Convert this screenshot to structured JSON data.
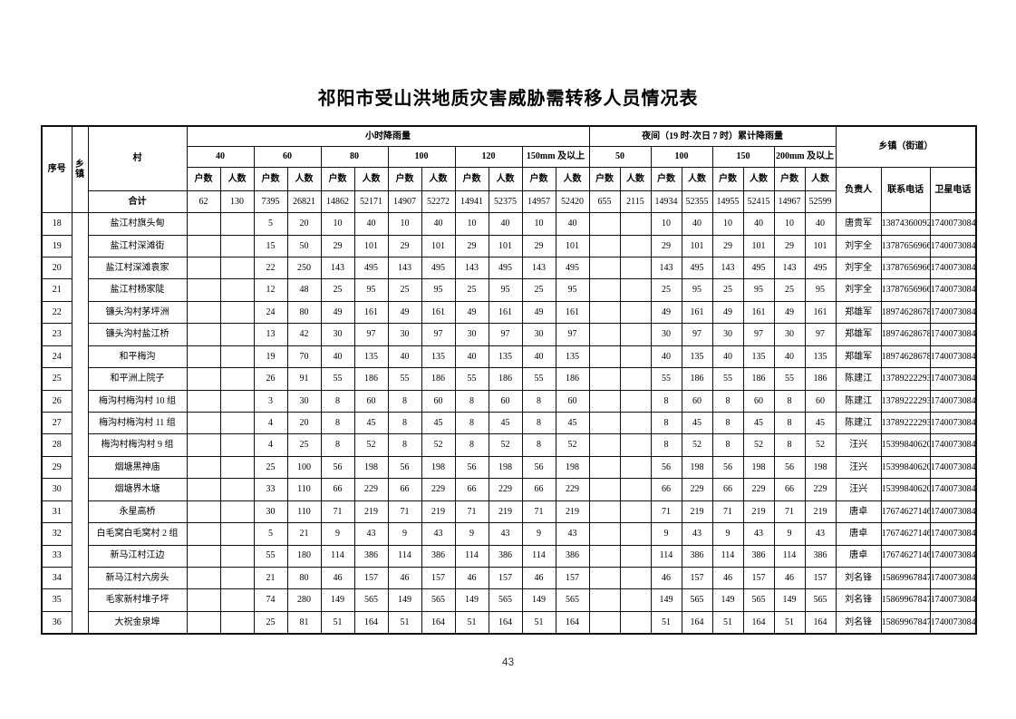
{
  "page": {
    "title": "祁阳市受山洪地质灾害威胁需转移人员情况表",
    "page_number": "43"
  },
  "table": {
    "headers": {
      "seq": "序号",
      "township": "乡镇",
      "village": "村",
      "hourly_group": "小时降雨量",
      "night_group": "夜间（19 时-次日 7 时）累计降雨量",
      "township_street_group": "乡镇（街道）",
      "hourly_levels": [
        "40",
        "60",
        "80",
        "100",
        "120",
        "150mm 及以上"
      ],
      "night_levels": [
        "50",
        "100",
        "150",
        "200mm 及以上"
      ],
      "households": "户数",
      "people": "人数",
      "person": "负责人",
      "phone": "联系电话",
      "sat_phone": "卫星电话",
      "total_label": "合计"
    },
    "total_row": [
      "62",
      "130",
      "7395",
      "26821",
      "14862",
      "52171",
      "14907",
      "52272",
      "14941",
      "52375",
      "14957",
      "52420",
      "655",
      "2115",
      "14934",
      "52355",
      "14955",
      "52415",
      "14967",
      "52599"
    ],
    "rows": [
      {
        "seq": "18",
        "village": "盐江村旗头甸",
        "values": [
          "",
          "",
          "5",
          "20",
          "10",
          "40",
          "10",
          "40",
          "10",
          "40",
          "10",
          "40",
          "",
          "",
          "10",
          "40",
          "10",
          "40",
          "10",
          "40"
        ],
        "person": "唐贵军",
        "phone": "13874360092",
        "sat": "17400730843"
      },
      {
        "seq": "19",
        "village": "盐江村深滩街",
        "values": [
          "",
          "",
          "15",
          "50",
          "29",
          "101",
          "29",
          "101",
          "29",
          "101",
          "29",
          "101",
          "",
          "",
          "29",
          "101",
          "29",
          "101",
          "29",
          "101"
        ],
        "person": "刘宇全",
        "phone": "13787656966",
        "sat": "17400730843"
      },
      {
        "seq": "20",
        "village": "盐江村深滩袁家",
        "values": [
          "",
          "",
          "22",
          "250",
          "143",
          "495",
          "143",
          "495",
          "143",
          "495",
          "143",
          "495",
          "",
          "",
          "143",
          "495",
          "143",
          "495",
          "143",
          "495"
        ],
        "person": "刘宇全",
        "phone": "13787656966",
        "sat": "17400730843"
      },
      {
        "seq": "21",
        "village": "盐江村杨家陡",
        "values": [
          "",
          "",
          "12",
          "48",
          "25",
          "95",
          "25",
          "95",
          "25",
          "95",
          "25",
          "95",
          "",
          "",
          "25",
          "95",
          "25",
          "95",
          "25",
          "95"
        ],
        "person": "刘宇全",
        "phone": "13787656966",
        "sat": "17400730843"
      },
      {
        "seq": "22",
        "village": "镰头沟村茅坪洲",
        "values": [
          "",
          "",
          "24",
          "80",
          "49",
          "161",
          "49",
          "161",
          "49",
          "161",
          "49",
          "161",
          "",
          "",
          "49",
          "161",
          "49",
          "161",
          "49",
          "161"
        ],
        "person": "郑雄军",
        "phone": "18974628678",
        "sat": "17400730843"
      },
      {
        "seq": "23",
        "village": "镰头沟村盐江桥",
        "values": [
          "",
          "",
          "13",
          "42",
          "30",
          "97",
          "30",
          "97",
          "30",
          "97",
          "30",
          "97",
          "",
          "",
          "30",
          "97",
          "30",
          "97",
          "30",
          "97"
        ],
        "person": "郑雄军",
        "phone": "18974628678",
        "sat": "17400730843"
      },
      {
        "seq": "24",
        "village": "和平梅沟",
        "values": [
          "",
          "",
          "19",
          "70",
          "40",
          "135",
          "40",
          "135",
          "40",
          "135",
          "40",
          "135",
          "",
          "",
          "40",
          "135",
          "40",
          "135",
          "40",
          "135"
        ],
        "person": "郑雄军",
        "phone": "18974628678",
        "sat": "17400730843"
      },
      {
        "seq": "25",
        "village": "和平洲上院子",
        "values": [
          "",
          "",
          "26",
          "91",
          "55",
          "186",
          "55",
          "186",
          "55",
          "186",
          "55",
          "186",
          "",
          "",
          "55",
          "186",
          "55",
          "186",
          "55",
          "186"
        ],
        "person": "陈建江",
        "phone": "13789222293",
        "sat": "17400730843"
      },
      {
        "seq": "26",
        "village": "梅沟村梅沟村 10 组",
        "values": [
          "",
          "",
          "3",
          "30",
          "8",
          "60",
          "8",
          "60",
          "8",
          "60",
          "8",
          "60",
          "",
          "",
          "8",
          "60",
          "8",
          "60",
          "8",
          "60"
        ],
        "person": "陈建江",
        "phone": "13789222293",
        "sat": "17400730843"
      },
      {
        "seq": "27",
        "village": "梅沟村梅沟村 11 组",
        "values": [
          "",
          "",
          "4",
          "20",
          "8",
          "45",
          "8",
          "45",
          "8",
          "45",
          "8",
          "45",
          "",
          "",
          "8",
          "45",
          "8",
          "45",
          "8",
          "45"
        ],
        "person": "陈建江",
        "phone": "13789222293",
        "sat": "17400730843"
      },
      {
        "seq": "28",
        "village": "梅沟村梅沟村 9 组",
        "values": [
          "",
          "",
          "4",
          "25",
          "8",
          "52",
          "8",
          "52",
          "8",
          "52",
          "8",
          "52",
          "",
          "",
          "8",
          "52",
          "8",
          "52",
          "8",
          "52"
        ],
        "person": "汪兴",
        "phone": "15399840620",
        "sat": "17400730843"
      },
      {
        "seq": "29",
        "village": "烟塘黑神庙",
        "values": [
          "",
          "",
          "25",
          "100",
          "56",
          "198",
          "56",
          "198",
          "56",
          "198",
          "56",
          "198",
          "",
          "",
          "56",
          "198",
          "56",
          "198",
          "56",
          "198"
        ],
        "person": "汪兴",
        "phone": "15399840620",
        "sat": "17400730843"
      },
      {
        "seq": "30",
        "village": "烟塘界木塘",
        "values": [
          "",
          "",
          "33",
          "110",
          "66",
          "229",
          "66",
          "229",
          "66",
          "229",
          "66",
          "229",
          "",
          "",
          "66",
          "229",
          "66",
          "229",
          "66",
          "229"
        ],
        "person": "汪兴",
        "phone": "15399840620",
        "sat": "17400730843"
      },
      {
        "seq": "31",
        "village": "永星高桥",
        "values": [
          "",
          "",
          "30",
          "110",
          "71",
          "219",
          "71",
          "219",
          "71",
          "219",
          "71",
          "219",
          "",
          "",
          "71",
          "219",
          "71",
          "219",
          "71",
          "219"
        ],
        "person": "唐卓",
        "phone": "17674627146",
        "sat": "17400730843"
      },
      {
        "seq": "32",
        "village": "白毛窝白毛窝村 2 组",
        "values": [
          "",
          "",
          "5",
          "21",
          "9",
          "43",
          "9",
          "43",
          "9",
          "43",
          "9",
          "43",
          "",
          "",
          "9",
          "43",
          "9",
          "43",
          "9",
          "43"
        ],
        "person": "唐卓",
        "phone": "17674627146",
        "sat": "17400730843"
      },
      {
        "seq": "33",
        "village": "新马江村江边",
        "values": [
          "",
          "",
          "55",
          "180",
          "114",
          "386",
          "114",
          "386",
          "114",
          "386",
          "114",
          "386",
          "",
          "",
          "114",
          "386",
          "114",
          "386",
          "114",
          "386"
        ],
        "person": "唐卓",
        "phone": "17674627146",
        "sat": "17400730843"
      },
      {
        "seq": "34",
        "village": "新马江村六房头",
        "values": [
          "",
          "",
          "21",
          "80",
          "46",
          "157",
          "46",
          "157",
          "46",
          "157",
          "46",
          "157",
          "",
          "",
          "46",
          "157",
          "46",
          "157",
          "46",
          "157"
        ],
        "person": "刘名锋",
        "phone": "15869967847",
        "sat": "17400730843"
      },
      {
        "seq": "35",
        "village": "毛家新村堆子坪",
        "values": [
          "",
          "",
          "74",
          "280",
          "149",
          "565",
          "149",
          "565",
          "149",
          "565",
          "149",
          "565",
          "",
          "",
          "149",
          "565",
          "149",
          "565",
          "149",
          "565"
        ],
        "person": "刘名锋",
        "phone": "15869967847",
        "sat": "17400730843"
      },
      {
        "seq": "36",
        "village": "大祝金泉埠",
        "values": [
          "",
          "",
          "25",
          "81",
          "51",
          "164",
          "51",
          "164",
          "51",
          "164",
          "51",
          "164",
          "",
          "",
          "51",
          "164",
          "51",
          "164",
          "51",
          "164"
        ],
        "person": "刘名锋",
        "phone": "15869967847",
        "sat": "17400730843"
      }
    ]
  }
}
